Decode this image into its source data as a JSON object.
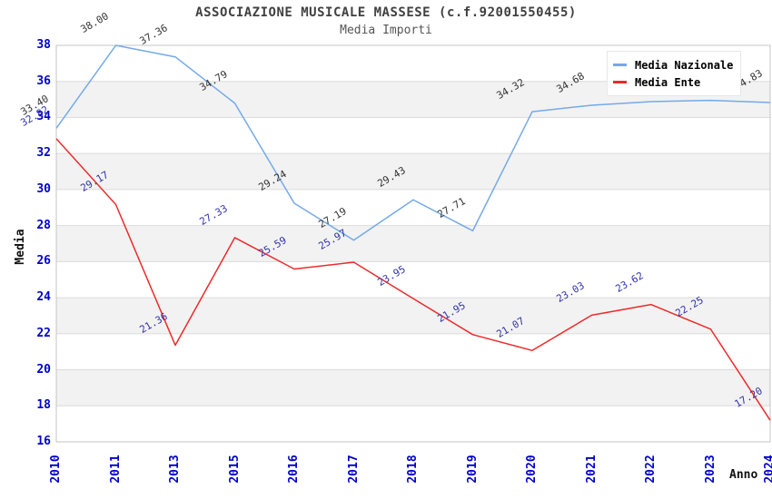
{
  "chart_data": {
    "type": "line",
    "title": "ASSOCIAZIONE MUSICALE MASSESE (c.f.92001550455)",
    "subtitle": "Media Importi",
    "xlabel": "Anno",
    "ylabel": "Media",
    "ylim": [
      16,
      38
    ],
    "ytick_step": 2,
    "grid": true,
    "alternating_bands": true,
    "legend_position": "top-right",
    "categories": [
      "2010",
      "2011",
      "2013",
      "2015",
      "2016",
      "2017",
      "2018",
      "2019",
      "2020",
      "2021",
      "2022",
      "2023",
      "2024"
    ],
    "series": [
      {
        "name": "Media Nazionale",
        "values": [
          33.4,
          38.0,
          37.36,
          34.79,
          29.24,
          27.19,
          29.43,
          27.71,
          34.32,
          34.68,
          34.88,
          34.95,
          34.83
        ],
        "color": "#74AAE8",
        "label_color": "#333333"
      },
      {
        "name": "Media Ente",
        "values": [
          32.82,
          29.17,
          21.36,
          27.33,
          25.59,
          25.97,
          23.95,
          21.95,
          21.07,
          23.03,
          23.62,
          22.25,
          17.2
        ],
        "color": "#EE2A2A",
        "label_color": "#3333AA"
      }
    ],
    "colors": {
      "axis_tick_text": "#0000CC",
      "band_fill": "#F2F2F2",
      "gridline": "#DCDCDC",
      "plot_border": "#C4C4C4",
      "title_text": "#404040",
      "subtitle_text": "#555555",
      "legend_bg": "#FFFFFF"
    }
  }
}
